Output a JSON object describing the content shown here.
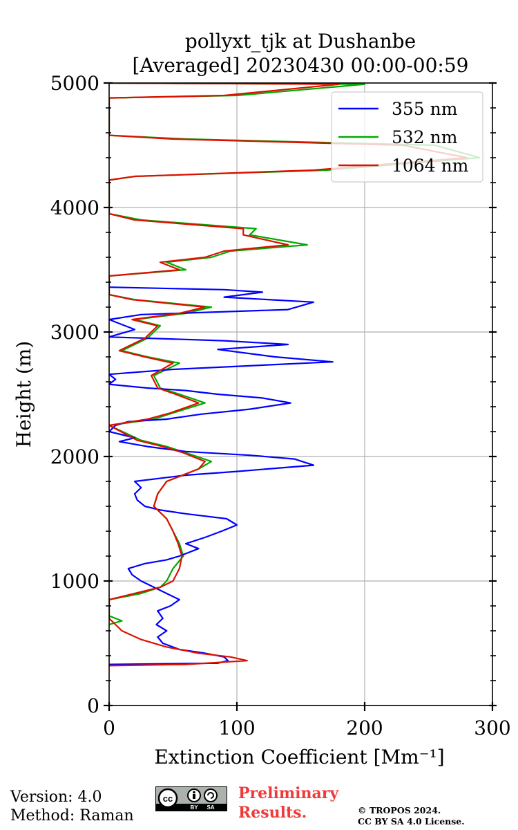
{
  "chart_data": {
    "type": "line",
    "title": "pollyxt_tjk at Dushanbe",
    "subtitle": "[Averaged] 20230430 00:00-00:59",
    "xlabel": "Extinction Coefficient [Mm⁻¹]",
    "ylabel": "Height (m)",
    "xlim": [
      0,
      300
    ],
    "ylim": [
      0,
      5000
    ],
    "xticks": [
      "0",
      "100",
      "200",
      "300"
    ],
    "yticks": [
      "0",
      "1000",
      "2000",
      "3000",
      "4000",
      "5000"
    ],
    "grid": true,
    "legend_position": "top-right",
    "series": [
      {
        "name": "355 nm",
        "color": "#0000ff",
        "points": [
          [
            0,
            330
          ],
          [
            85,
            340
          ],
          [
            93,
            360
          ],
          [
            90,
            390
          ],
          [
            75,
            420
          ],
          [
            55,
            450
          ],
          [
            42,
            500
          ],
          [
            38,
            550
          ],
          [
            45,
            600
          ],
          [
            37,
            650
          ],
          [
            42,
            700
          ],
          [
            38,
            760
          ],
          [
            48,
            800
          ],
          [
            55,
            850
          ],
          [
            45,
            900
          ],
          [
            35,
            950
          ],
          [
            25,
            1000
          ],
          [
            18,
            1050
          ],
          [
            15,
            1100
          ],
          [
            28,
            1140
          ],
          [
            45,
            1170
          ],
          [
            55,
            1200
          ],
          [
            70,
            1260
          ],
          [
            60,
            1300
          ],
          [
            75,
            1350
          ],
          [
            88,
            1400
          ],
          [
            100,
            1450
          ],
          [
            92,
            1500
          ],
          [
            60,
            1540
          ],
          [
            40,
            1570
          ],
          [
            28,
            1600
          ],
          [
            22,
            1650
          ],
          [
            20,
            1700
          ],
          [
            25,
            1750
          ],
          [
            20,
            1800
          ],
          [
            60,
            1850
          ],
          [
            100,
            1880
          ],
          [
            160,
            1930
          ],
          [
            145,
            1980
          ],
          [
            110,
            2010
          ],
          [
            60,
            2040
          ],
          [
            30,
            2080
          ],
          [
            8,
            2120
          ],
          [
            20,
            2150
          ],
          [
            0,
            2200
          ],
          [
            5,
            2250
          ],
          [
            15,
            2280
          ],
          [
            45,
            2300
          ],
          [
            72,
            2340
          ],
          [
            110,
            2380
          ],
          [
            142,
            2430
          ],
          [
            120,
            2470
          ],
          [
            85,
            2500
          ],
          [
            60,
            2530
          ],
          [
            30,
            2550
          ],
          [
            0,
            2580
          ],
          [
            5,
            2620
          ],
          [
            0,
            2660
          ],
          [
            50,
            2700
          ],
          [
            175,
            2760
          ],
          [
            130,
            2800
          ],
          [
            85,
            2860
          ],
          [
            140,
            2900
          ],
          [
            90,
            2930
          ],
          [
            0,
            2960
          ],
          [
            20,
            3020
          ],
          [
            0,
            3100
          ],
          [
            25,
            3140
          ],
          [
            140,
            3180
          ],
          [
            160,
            3240
          ],
          [
            90,
            3280
          ],
          [
            120,
            3320
          ],
          [
            90,
            3340
          ],
          [
            0,
            3360
          ]
        ]
      },
      {
        "name": "532 nm",
        "color": "#00aa00",
        "points": [
          [
            0,
            650
          ],
          [
            10,
            680
          ],
          [
            0,
            720
          ],
          [
            0,
            850
          ],
          [
            25,
            900
          ],
          [
            40,
            950
          ],
          [
            45,
            1000
          ],
          [
            50,
            1100
          ],
          [
            58,
            1200
          ],
          [
            55,
            1300
          ],
          [
            50,
            1400
          ],
          [
            45,
            1500
          ],
          [
            35,
            1600
          ],
          [
            38,
            1700
          ],
          [
            45,
            1800
          ],
          [
            70,
            1900
          ],
          [
            80,
            1960
          ],
          [
            60,
            2030
          ],
          [
            45,
            2080
          ],
          [
            25,
            2130
          ],
          [
            0,
            2250
          ],
          [
            35,
            2300
          ],
          [
            50,
            2350
          ],
          [
            75,
            2430
          ],
          [
            55,
            2500
          ],
          [
            40,
            2550
          ],
          [
            35,
            2650
          ],
          [
            55,
            2750
          ],
          [
            30,
            2800
          ],
          [
            10,
            2850
          ],
          [
            20,
            2900
          ],
          [
            30,
            2950
          ],
          [
            40,
            3050
          ],
          [
            20,
            3100
          ],
          [
            60,
            3150
          ],
          [
            80,
            3200
          ],
          [
            20,
            3260
          ],
          [
            0,
            3300
          ],
          [
            0,
            3450
          ],
          [
            60,
            3500
          ],
          [
            45,
            3560
          ],
          [
            80,
            3600
          ],
          [
            95,
            3650
          ],
          [
            155,
            3700
          ],
          [
            110,
            3780
          ],
          [
            115,
            3830
          ],
          [
            25,
            3900
          ],
          [
            0,
            3950
          ],
          [
            0,
            4220
          ],
          [
            20,
            4250
          ],
          [
            170,
            4300
          ],
          [
            290,
            4400
          ],
          [
            255,
            4500
          ],
          [
            60,
            4550
          ],
          [
            0,
            4580
          ],
          [
            0,
            4880
          ],
          [
            100,
            4900
          ],
          [
            200,
            4990
          ],
          [
            0,
            5000
          ]
        ]
      },
      {
        "name": "1064 nm",
        "color": "#dd1100",
        "points": [
          [
            0,
            320
          ],
          [
            60,
            330
          ],
          [
            108,
            360
          ],
          [
            95,
            390
          ],
          [
            70,
            420
          ],
          [
            45,
            470
          ],
          [
            25,
            530
          ],
          [
            10,
            600
          ],
          [
            0,
            700
          ],
          [
            0,
            850
          ],
          [
            20,
            900
          ],
          [
            40,
            950
          ],
          [
            50,
            1000
          ],
          [
            55,
            1100
          ],
          [
            57,
            1200
          ],
          [
            54,
            1300
          ],
          [
            50,
            1400
          ],
          [
            45,
            1500
          ],
          [
            35,
            1600
          ],
          [
            38,
            1700
          ],
          [
            45,
            1800
          ],
          [
            70,
            1900
          ],
          [
            75,
            1960
          ],
          [
            58,
            2030
          ],
          [
            42,
            2080
          ],
          [
            22,
            2130
          ],
          [
            0,
            2250
          ],
          [
            30,
            2300
          ],
          [
            48,
            2350
          ],
          [
            70,
            2430
          ],
          [
            52,
            2500
          ],
          [
            38,
            2550
          ],
          [
            33,
            2650
          ],
          [
            50,
            2750
          ],
          [
            28,
            2800
          ],
          [
            8,
            2850
          ],
          [
            18,
            2900
          ],
          [
            28,
            2950
          ],
          [
            38,
            3050
          ],
          [
            18,
            3100
          ],
          [
            55,
            3150
          ],
          [
            75,
            3200
          ],
          [
            18,
            3260
          ],
          [
            0,
            3300
          ],
          [
            0,
            3450
          ],
          [
            55,
            3500
          ],
          [
            40,
            3560
          ],
          [
            75,
            3600
          ],
          [
            90,
            3650
          ],
          [
            140,
            3700
          ],
          [
            105,
            3780
          ],
          [
            105,
            3830
          ],
          [
            20,
            3900
          ],
          [
            0,
            3950
          ],
          [
            0,
            4220
          ],
          [
            20,
            4250
          ],
          [
            160,
            4300
          ],
          [
            280,
            4400
          ],
          [
            230,
            4500
          ],
          [
            50,
            4550
          ],
          [
            0,
            4580
          ],
          [
            0,
            4880
          ],
          [
            90,
            4900
          ],
          [
            180,
            4990
          ],
          [
            0,
            5000
          ]
        ]
      }
    ]
  },
  "footer": {
    "version": "Version: 4.0",
    "method": "Method: Raman",
    "preliminary_line1": "Preliminary",
    "preliminary_line2": "Results.",
    "copyright_line1": "© TROPOS 2024.",
    "copyright_line2": "CC BY SA 4.0 License.",
    "cc_badge": {
      "cc": "cc",
      "by": "BY",
      "sa": "SA"
    }
  }
}
